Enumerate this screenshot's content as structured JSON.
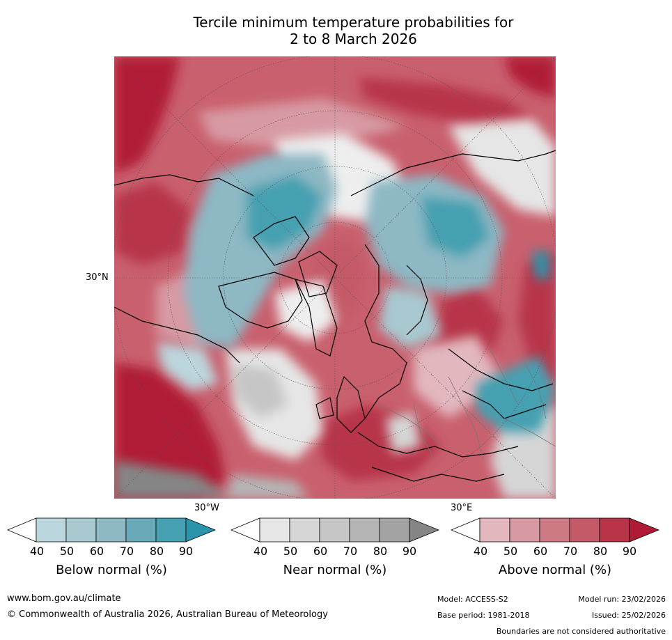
{
  "title": {
    "line1": "Tercile minimum temperature probabilities for",
    "line2": "2 to 8 March 2026"
  },
  "map": {
    "projection": "north polar stereographic",
    "labels": {
      "lat_30n": "30°N",
      "lon_30w": "30°W",
      "lon_30e": "30°E"
    }
  },
  "colorbars": [
    {
      "id": "below",
      "label": "Below normal (%)",
      "ticks": [
        "40",
        "50",
        "60",
        "70",
        "80",
        "90"
      ],
      "colors": [
        "#ffffff",
        "#bcd6dd",
        "#a8c9d0",
        "#8db8c4",
        "#6aa9b7",
        "#45a0b1",
        "#2a94aa"
      ]
    },
    {
      "id": "near",
      "label": "Near normal (%)",
      "ticks": [
        "40",
        "50",
        "60",
        "70",
        "80",
        "90"
      ],
      "colors": [
        "#ffffff",
        "#e6e6e6",
        "#d6d6d6",
        "#c6c6c6",
        "#b5b5b5",
        "#a3a3a3",
        "#858585"
      ]
    },
    {
      "id": "above",
      "label": "Above normal (%)",
      "ticks": [
        "40",
        "50",
        "60",
        "70",
        "80",
        "90"
      ],
      "colors": [
        "#ffffff",
        "#e2b7bd",
        "#d79aa3",
        "#cd7a85",
        "#c45a67",
        "#b83449",
        "#b01a35"
      ]
    }
  ],
  "footer": {
    "website": "www.bom.gov.au/climate",
    "copyright": "© Commonwealth of Australia 2026, Australian Bureau of Meteorology",
    "model": "Model: ACCESS-S2",
    "base_period": "Base period: 1981-2018",
    "model_run": "Model run: 23/02/2026",
    "issued": "Issued: 25/02/2026",
    "disclaimer": "Boundaries are not considered authoritative"
  }
}
